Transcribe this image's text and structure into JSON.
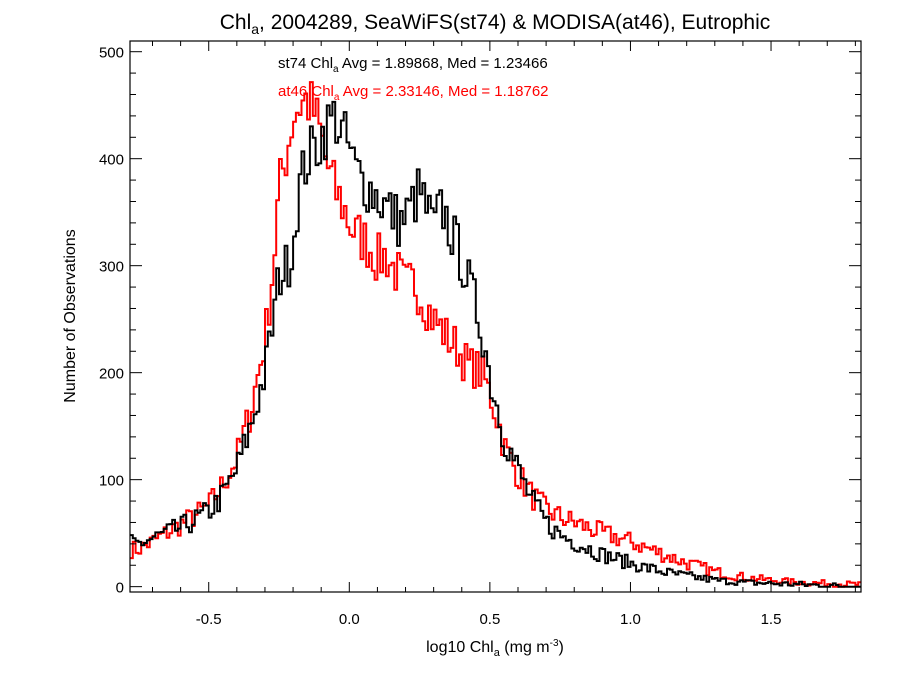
{
  "chart_data": {
    "type": "line",
    "style": "step-histogram",
    "title": {
      "pre": "Chl",
      "sub": "a",
      "post": ", 2004289, SeaWiFS(st74) & MODISA(at46), Eutrophic"
    },
    "xlabel": {
      "pre": "log10 Chl",
      "sub": "a",
      "mid": " (mg m",
      "sup": "-3",
      "post": ")"
    },
    "ylabel": "Number of Observations",
    "xlim": [
      -0.78,
      1.82
    ],
    "ylim": [
      -5,
      510
    ],
    "x_ticks": [
      -0.5,
      0.0,
      0.5,
      1.0,
      1.5
    ],
    "x_tick_labels": [
      "-0.5",
      "0.0",
      "0.5",
      "1.0",
      "1.5"
    ],
    "y_ticks": [
      0,
      100,
      200,
      300,
      400,
      500
    ],
    "y_tick_labels": [
      "0",
      "100",
      "200",
      "300",
      "400",
      "500"
    ],
    "annotations": [
      {
        "pre": "st74 Chl",
        "sub": "a",
        "post": " Avg = 1.89868, Med = 1.23466",
        "color": "#000000"
      },
      {
        "pre": "at46 Chl",
        "sub": "a",
        "post": " Avg = 2.33146, Med = 1.18762",
        "color": "#ff0000"
      }
    ],
    "grid": false,
    "series": [
      {
        "color": "#000000",
        "x": [
          -0.75,
          -0.7,
          -0.65,
          -0.6,
          -0.55,
          -0.5,
          -0.45,
          -0.4,
          -0.35,
          -0.3,
          -0.27,
          -0.25,
          -0.22,
          -0.2,
          -0.18,
          -0.15,
          -0.12,
          -0.1,
          -0.08,
          -0.05,
          -0.02,
          0.0,
          0.02,
          0.05,
          0.08,
          0.1,
          0.13,
          0.15,
          0.18,
          0.2,
          0.23,
          0.25,
          0.28,
          0.3,
          0.33,
          0.35,
          0.38,
          0.4,
          0.43,
          0.45,
          0.48,
          0.5,
          0.53,
          0.55,
          0.6,
          0.65,
          0.7,
          0.75,
          0.8,
          0.85,
          0.9,
          0.95,
          1.0,
          1.05,
          1.1,
          1.15,
          1.2,
          1.25,
          1.3,
          1.4,
          1.5,
          1.6,
          1.7,
          1.8
        ],
        "y": [
          40,
          45,
          50,
          55,
          62,
          70,
          85,
          110,
          150,
          200,
          250,
          290,
          300,
          320,
          370,
          400,
          410,
          420,
          430,
          440,
          420,
          410,
          390,
          380,
          370,
          365,
          355,
          350,
          340,
          345,
          360,
          370,
          350,
          335,
          355,
          340,
          320,
          305,
          280,
          262,
          230,
          195,
          165,
          140,
          110,
          80,
          60,
          48,
          42,
          36,
          30,
          26,
          22,
          18,
          15,
          12,
          10,
          8,
          6,
          4,
          3,
          2,
          1,
          0
        ]
      },
      {
        "color": "#ff0000",
        "x": [
          -0.75,
          -0.7,
          -0.65,
          -0.6,
          -0.55,
          -0.5,
          -0.45,
          -0.4,
          -0.35,
          -0.3,
          -0.27,
          -0.25,
          -0.22,
          -0.2,
          -0.18,
          -0.15,
          -0.12,
          -0.1,
          -0.08,
          -0.05,
          -0.02,
          0.0,
          0.02,
          0.05,
          0.08,
          0.1,
          0.13,
          0.15,
          0.18,
          0.2,
          0.23,
          0.25,
          0.28,
          0.3,
          0.33,
          0.35,
          0.38,
          0.4,
          0.43,
          0.45,
          0.48,
          0.5,
          0.53,
          0.55,
          0.6,
          0.65,
          0.7,
          0.75,
          0.8,
          0.85,
          0.9,
          0.95,
          1.0,
          1.05,
          1.1,
          1.15,
          1.2,
          1.25,
          1.3,
          1.4,
          1.5,
          1.6,
          1.7,
          1.8
        ],
        "y": [
          35,
          42,
          50,
          58,
          66,
          75,
          95,
          120,
          165,
          230,
          300,
          370,
          410,
          440,
          450,
          455,
          440,
          420,
          395,
          370,
          355,
          340,
          330,
          325,
          315,
          305,
          310,
          300,
          290,
          280,
          285,
          275,
          260,
          250,
          240,
          232,
          225,
          215,
          205,
          205,
          195,
          180,
          155,
          132,
          105,
          85,
          72,
          65,
          60,
          55,
          50,
          46,
          42,
          37,
          32,
          27,
          22,
          18,
          14,
          9,
          6,
          4,
          3,
          2
        ]
      }
    ]
  }
}
